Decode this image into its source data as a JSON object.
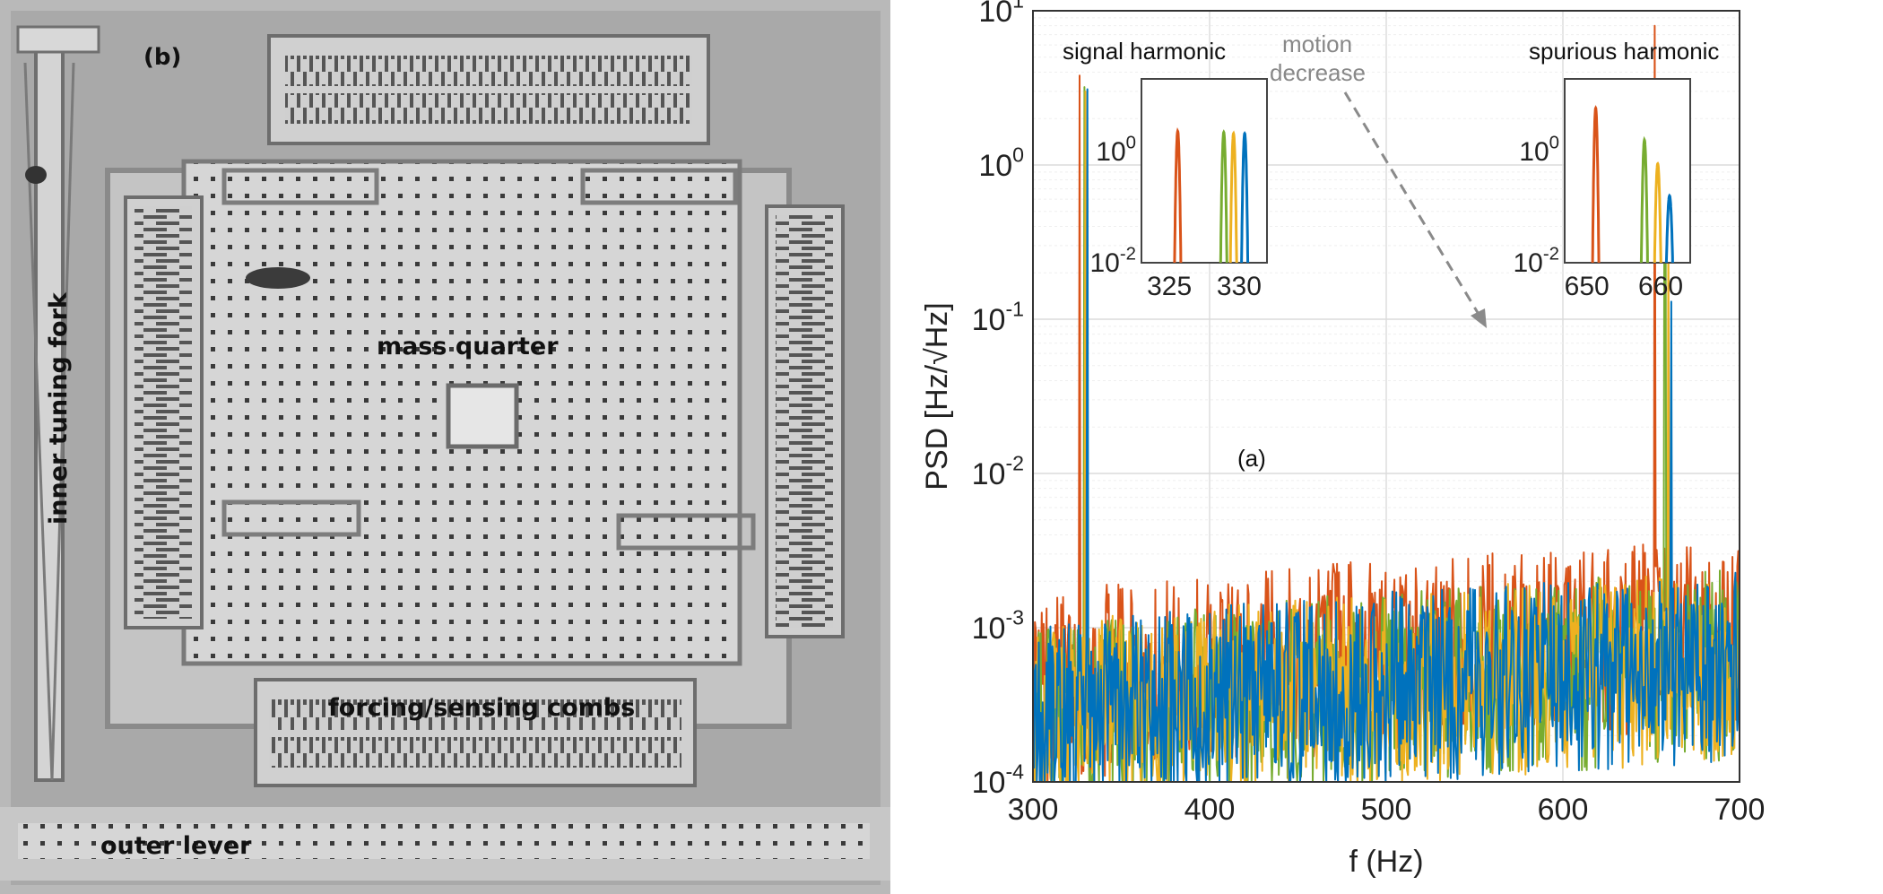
{
  "micrograph": {
    "panel_label": "(b)",
    "labels": {
      "inner_tuning_fork": "inner tuning fork",
      "mass_quarter": "mass quarter",
      "combs": "forcing/sensing combs",
      "outer_lever": "outer lever"
    }
  },
  "chart_data": {
    "type": "line",
    "panel_label": "(a)",
    "xlabel": "f (Hz)",
    "ylabel": "PSD [Hz/√Hz]",
    "xlim": [
      300,
      700
    ],
    "ylim": [
      0.0001,
      10
    ],
    "yscale": "log",
    "x_ticks": [
      "300",
      "400",
      "500",
      "600",
      "700"
    ],
    "y_ticks": [
      {
        "value": 10,
        "base": "10",
        "exp": "1"
      },
      {
        "value": 1,
        "base": "10",
        "exp": "0"
      },
      {
        "value": 0.1,
        "base": "10",
        "exp": "-1"
      },
      {
        "value": 0.01,
        "base": "10",
        "exp": "-2"
      },
      {
        "value": 0.001,
        "base": "10",
        "exp": "-3"
      },
      {
        "value": 0.0001,
        "base": "10",
        "exp": "-4"
      }
    ],
    "grid": true,
    "series": [
      {
        "color": "#d95319",
        "peaks": [
          [
            326.2,
            3.8
          ],
          [
            652.2,
            8.0
          ]
        ],
        "noise_floor": 0.0006
      },
      {
        "color": "#77ac30",
        "peaks": [
          [
            329.0,
            3.2
          ],
          [
            657.8,
            2.4
          ]
        ],
        "noise_floor": 0.0005
      },
      {
        "color": "#edb120",
        "peaks": [
          [
            329.8,
            3.0
          ],
          [
            659.6,
            0.5
          ]
        ],
        "noise_floor": 0.0005
      },
      {
        "color": "#0072bd",
        "peaks": [
          [
            330.6,
            3.1
          ],
          [
            661.2,
            0.13
          ]
        ],
        "noise_floor": 0.0005
      }
    ],
    "annotations": {
      "signal": "signal harmonic",
      "spurious": "spurious harmonic",
      "motion": [
        "motion",
        "decrease"
      ]
    },
    "insets": [
      {
        "name": "signal",
        "xlim": [
          323,
          332
        ],
        "ylim": [
          0.01,
          20
        ],
        "yscale": "log",
        "x_ticks": [
          "325",
          "330"
        ],
        "y_ticks": [
          {
            "value": 1,
            "base": "10",
            "exp": "0"
          },
          {
            "value": 0.01,
            "base": "10",
            "exp": "-2"
          }
        ],
        "peaks": [
          {
            "color": "#d95319",
            "x": 325.6,
            "y": 2.3
          },
          {
            "color": "#77ac30",
            "x": 328.9,
            "y": 2.2
          },
          {
            "color": "#edb120",
            "x": 329.6,
            "y": 2.1
          },
          {
            "color": "#0072bd",
            "x": 330.4,
            "y": 2.1
          }
        ]
      },
      {
        "name": "spurious",
        "xlim": [
          647,
          664
        ],
        "ylim": [
          0.01,
          20
        ],
        "yscale": "log",
        "x_ticks": [
          "650",
          "660"
        ],
        "y_ticks": [
          {
            "value": 1,
            "base": "10",
            "exp": "0"
          },
          {
            "value": 0.01,
            "base": "10",
            "exp": "-2"
          }
        ],
        "peaks": [
          {
            "color": "#d95319",
            "x": 651.2,
            "y": 6.0
          },
          {
            "color": "#77ac30",
            "x": 657.8,
            "y": 1.6
          },
          {
            "color": "#edb120",
            "x": 659.6,
            "y": 0.6
          },
          {
            "color": "#0072bd",
            "x": 661.2,
            "y": 0.16
          }
        ]
      }
    ]
  }
}
